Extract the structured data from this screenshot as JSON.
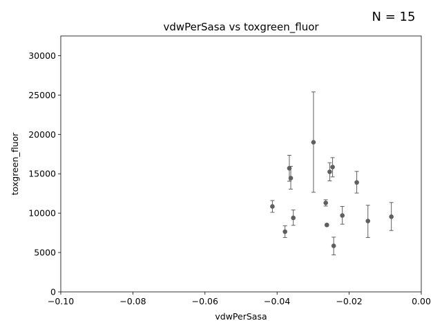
{
  "chart_data": {
    "type": "scatter",
    "title": "vdwPerSasa vs toxgreen_fluor",
    "annotation": "N = 15",
    "xlabel": "vdwPerSasa",
    "ylabel": "toxgreen_fluor",
    "xlim": [
      -0.1,
      0.0
    ],
    "ylim": [
      0,
      32500
    ],
    "xticks": [
      -0.1,
      -0.08,
      -0.06,
      -0.04,
      -0.02,
      0.0
    ],
    "xtick_labels": [
      "−0.10",
      "−0.08",
      "−0.06",
      "−0.04",
      "−0.02",
      "0.00"
    ],
    "yticks": [
      0,
      5000,
      10000,
      15000,
      20000,
      25000,
      30000
    ],
    "ytick_labels": [
      "0",
      "5000",
      "10000",
      "15000",
      "20000",
      "25000",
      "30000"
    ],
    "grid": false,
    "marker_color": "#5f5f5f",
    "errorbar_color": "#5f5f5f",
    "points": [
      {
        "x": -0.0413,
        "y": 10850,
        "err_low": 10100,
        "err_high": 11600
      },
      {
        "x": -0.0378,
        "y": 7650,
        "err_low": 6900,
        "err_high": 8400
      },
      {
        "x": -0.0366,
        "y": 15700,
        "err_low": 14050,
        "err_high": 17350
      },
      {
        "x": -0.0362,
        "y": 14450,
        "err_low": 13050,
        "err_high": 15950
      },
      {
        "x": -0.0355,
        "y": 9400,
        "err_low": 8450,
        "err_high": 10400
      },
      {
        "x": -0.0299,
        "y": 19000,
        "err_low": 12650,
        "err_high": 25400
      },
      {
        "x": -0.0265,
        "y": 11300,
        "err_low": 10900,
        "err_high": 11700
      },
      {
        "x": -0.0262,
        "y": 8500,
        "err_low": 8400,
        "err_high": 8600
      },
      {
        "x": -0.0254,
        "y": 15250,
        "err_low": 14100,
        "err_high": 16400
      },
      {
        "x": -0.0246,
        "y": 15850,
        "err_low": 14600,
        "err_high": 17050
      },
      {
        "x": -0.0243,
        "y": 5850,
        "err_low": 4700,
        "err_high": 6950
      },
      {
        "x": -0.0219,
        "y": 9700,
        "err_low": 8600,
        "err_high": 10850
      },
      {
        "x": -0.0179,
        "y": 13900,
        "err_low": 12550,
        "err_high": 15300
      },
      {
        "x": -0.0148,
        "y": 9000,
        "err_low": 6900,
        "err_high": 11000
      },
      {
        "x": -0.0083,
        "y": 9550,
        "err_low": 7800,
        "err_high": 11350
      }
    ]
  }
}
